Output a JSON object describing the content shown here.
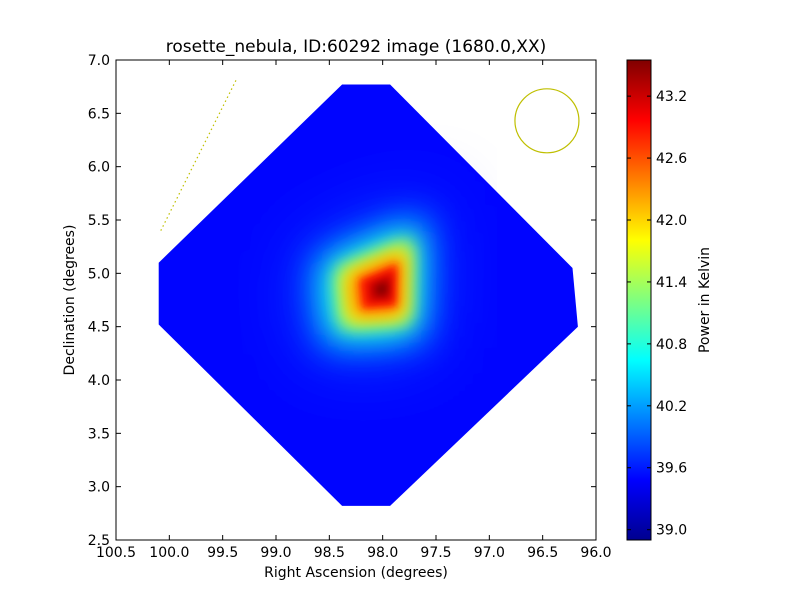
{
  "chart_data": {
    "type": "heatmap",
    "title": "rosette_nebula, ID:60292 image (1680.0,XX)",
    "xlabel": "Right Ascension (degrees)",
    "ylabel": "Declination (degrees)",
    "xlim": [
      100.5,
      96.0
    ],
    "ylim": [
      2.5,
      7.0
    ],
    "x_ticks": [
      "100.5",
      "100.0",
      "99.5",
      "99.0",
      "98.5",
      "98.0",
      "97.5",
      "97.0",
      "96.5",
      "96.0"
    ],
    "x_tick_values": [
      100.5,
      100.0,
      99.5,
      99.0,
      98.5,
      98.0,
      97.5,
      97.0,
      96.5,
      96.0
    ],
    "y_ticks": [
      "2.5",
      "3.0",
      "3.5",
      "4.0",
      "4.5",
      "5.0",
      "5.5",
      "6.0",
      "6.5",
      "7.0"
    ],
    "y_tick_values": [
      2.5,
      3.0,
      3.5,
      4.0,
      4.5,
      5.0,
      5.5,
      6.0,
      6.5,
      7.0
    ],
    "colorbar": {
      "label": "Power in Kelvin",
      "colormap": "jet",
      "vmin": 38.9,
      "vmax": 43.55,
      "ticks": [
        "39.0",
        "39.6",
        "40.2",
        "40.8",
        "41.4",
        "42.0",
        "42.6",
        "43.2"
      ],
      "tick_values": [
        39.0,
        39.6,
        40.2,
        40.8,
        41.4,
        42.0,
        42.6,
        43.2
      ]
    },
    "map_footprint_vertices": [
      [
        98.38,
        6.77
      ],
      [
        97.93,
        6.77
      ],
      [
        96.22,
        5.05
      ],
      [
        96.17,
        4.5
      ],
      [
        97.93,
        2.82
      ],
      [
        98.38,
        2.82
      ],
      [
        100.1,
        4.52
      ],
      [
        100.1,
        5.1
      ]
    ],
    "background_level": 39.5,
    "peak": {
      "ra": 98.0,
      "dec": 4.85,
      "value": 43.55
    },
    "bright_region_vertices": [
      [
        98.48,
        5.05
      ],
      [
        97.7,
        5.38
      ],
      [
        97.72,
        4.5
      ],
      [
        98.42,
        4.45
      ]
    ],
    "beam": {
      "ra": 96.46,
      "dec": 6.43,
      "radius_deg": 0.3,
      "color": "#bfbf00"
    },
    "scan_line": {
      "from": [
        100.08,
        5.4
      ],
      "to": [
        99.37,
        6.82
      ],
      "color": "#bfbf00"
    }
  }
}
